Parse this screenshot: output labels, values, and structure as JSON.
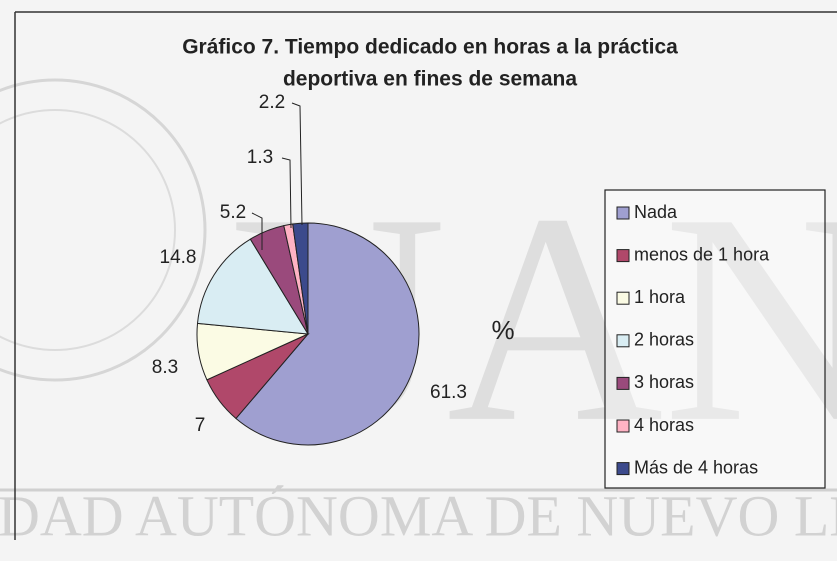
{
  "chart_data": {
    "type": "pie",
    "title": [
      "Gráfico 7. Tiempo dedicado en horas a la práctica",
      "deportiva en fines de semana"
    ],
    "unit_label": "%",
    "categories": [
      "Nada",
      "menos de 1 hora",
      "1 hora",
      "2 horas",
      "3 horas",
      "4 horas",
      "Más de 4 horas"
    ],
    "values": [
      61.3,
      7,
      8.3,
      14.8,
      5.2,
      1.3,
      2.2
    ],
    "colors": [
      "#9f9fd0",
      "#b0486a",
      "#fbfbe4",
      "#d9edf3",
      "#9a4a7c",
      "#ffb3c4",
      "#3c4a8c"
    ],
    "legend": "right"
  },
  "watermark": {
    "big": "UANL",
    "bottom": "DAD AUTÓNOMA DE NUEVO LEO"
  }
}
